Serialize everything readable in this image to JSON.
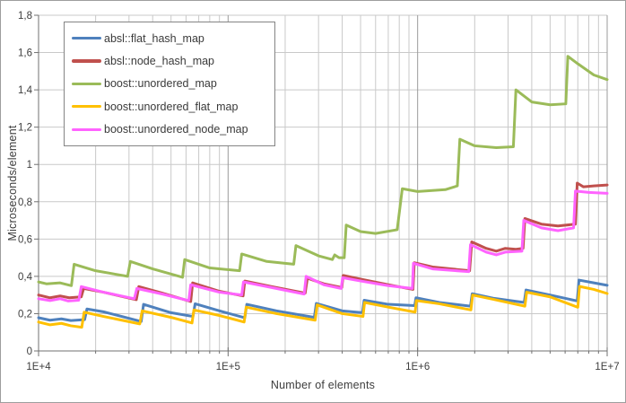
{
  "chart_data": {
    "type": "line",
    "xlabel": "Number of elements",
    "ylabel": "Microseconds/element",
    "x_scale": "log10",
    "x_range": [
      10000,
      10000000
    ],
    "y_range": [
      0,
      1.8
    ],
    "y_tick_step": 0.2,
    "x_tick_labels": [
      "1E+4",
      "1E+5",
      "1E+6",
      "1E+7"
    ],
    "y_tick_labels": [
      "0",
      "0,2",
      "0,4",
      "0,6",
      "0,8",
      "1",
      "1,2",
      "1,4",
      "1,6",
      "1,8"
    ],
    "grid": true,
    "legend_position": "inside-top-left",
    "series": [
      {
        "name": "absl::flat_hash_map",
        "color": "#4F81BD",
        "points": [
          [
            10000,
            0.178
          ],
          [
            11500,
            0.165
          ],
          [
            13200,
            0.172
          ],
          [
            14800,
            0.163
          ],
          [
            17500,
            0.168
          ],
          [
            18000,
            0.225
          ],
          [
            22000,
            0.21
          ],
          [
            34800,
            0.158
          ],
          [
            35800,
            0.25
          ],
          [
            50000,
            0.205
          ],
          [
            65200,
            0.185
          ],
          [
            67000,
            0.253
          ],
          [
            90000,
            0.215
          ],
          [
            122500,
            0.178
          ],
          [
            125500,
            0.25
          ],
          [
            180000,
            0.215
          ],
          [
            285000,
            0.18
          ],
          [
            292000,
            0.255
          ],
          [
            400000,
            0.215
          ],
          [
            512000,
            0.205
          ],
          [
            522000,
            0.272
          ],
          [
            700000,
            0.25
          ],
          [
            965000,
            0.243
          ],
          [
            980000,
            0.285
          ],
          [
            1300000,
            0.26
          ],
          [
            1900000,
            0.24
          ],
          [
            1940000,
            0.307
          ],
          [
            2500000,
            0.283
          ],
          [
            3650000,
            0.26
          ],
          [
            3730000,
            0.327
          ],
          [
            5000000,
            0.3
          ],
          [
            6950000,
            0.268
          ],
          [
            7100000,
            0.38
          ],
          [
            8500000,
            0.365
          ],
          [
            10000000,
            0.352
          ]
        ]
      },
      {
        "name": "absl::node_hash_map",
        "color": "#C0504D",
        "points": [
          [
            10000,
            0.3
          ],
          [
            11500,
            0.285
          ],
          [
            13000,
            0.295
          ],
          [
            14500,
            0.285
          ],
          [
            16800,
            0.29
          ],
          [
            17300,
            0.335
          ],
          [
            22000,
            0.315
          ],
          [
            32800,
            0.275
          ],
          [
            33800,
            0.345
          ],
          [
            45000,
            0.31
          ],
          [
            63500,
            0.265
          ],
          [
            65000,
            0.365
          ],
          [
            90000,
            0.32
          ],
          [
            120000,
            0.295
          ],
          [
            122500,
            0.375
          ],
          [
            170000,
            0.345
          ],
          [
            255000,
            0.31
          ],
          [
            262000,
            0.39
          ],
          [
            320000,
            0.36
          ],
          [
            398000,
            0.34
          ],
          [
            405000,
            0.405
          ],
          [
            500000,
            0.385
          ],
          [
            700000,
            0.355
          ],
          [
            945000,
            0.33
          ],
          [
            960000,
            0.473
          ],
          [
            1200000,
            0.45
          ],
          [
            1880000,
            0.43
          ],
          [
            1930000,
            0.585
          ],
          [
            2300000,
            0.55
          ],
          [
            2600000,
            0.535
          ],
          [
            2900000,
            0.55
          ],
          [
            3300000,
            0.545
          ],
          [
            3600000,
            0.55
          ],
          [
            3680000,
            0.71
          ],
          [
            4500000,
            0.68
          ],
          [
            5500000,
            0.67
          ],
          [
            6800000,
            0.68
          ],
          [
            6950000,
            0.9
          ],
          [
            7500000,
            0.88
          ],
          [
            8500000,
            0.885
          ],
          [
            10000000,
            0.89
          ]
        ]
      },
      {
        "name": "boost::unordered_map",
        "color": "#9BBB59",
        "points": [
          [
            10000,
            0.37
          ],
          [
            11000,
            0.36
          ],
          [
            13000,
            0.365
          ],
          [
            14900,
            0.35
          ],
          [
            15400,
            0.465
          ],
          [
            20000,
            0.43
          ],
          [
            29500,
            0.4
          ],
          [
            30500,
            0.48
          ],
          [
            40000,
            0.44
          ],
          [
            57500,
            0.395
          ],
          [
            59000,
            0.49
          ],
          [
            80000,
            0.445
          ],
          [
            115000,
            0.43
          ],
          [
            118000,
            0.52
          ],
          [
            160000,
            0.48
          ],
          [
            222000,
            0.465
          ],
          [
            228000,
            0.565
          ],
          [
            300000,
            0.51
          ],
          [
            355000,
            0.49
          ],
          [
            365000,
            0.515
          ],
          [
            385000,
            0.5
          ],
          [
            410000,
            0.5
          ],
          [
            420000,
            0.675
          ],
          [
            500000,
            0.64
          ],
          [
            600000,
            0.63
          ],
          [
            780000,
            0.65
          ],
          [
            830000,
            0.87
          ],
          [
            1000000,
            0.855
          ],
          [
            1400000,
            0.865
          ],
          [
            1620000,
            0.885
          ],
          [
            1670000,
            1.135
          ],
          [
            2000000,
            1.1
          ],
          [
            2600000,
            1.09
          ],
          [
            3200000,
            1.095
          ],
          [
            3300000,
            1.4
          ],
          [
            4000000,
            1.335
          ],
          [
            5000000,
            1.32
          ],
          [
            6050000,
            1.325
          ],
          [
            6200000,
            1.58
          ],
          [
            7000000,
            1.54
          ],
          [
            8500000,
            1.48
          ],
          [
            10000000,
            1.455
          ]
        ]
      },
      {
        "name": "boost::unordered_flat_map",
        "color": "#FFC000",
        "points": [
          [
            10000,
            0.155
          ],
          [
            11500,
            0.14
          ],
          [
            13200,
            0.148
          ],
          [
            14800,
            0.135
          ],
          [
            16900,
            0.127
          ],
          [
            17400,
            0.208
          ],
          [
            22000,
            0.185
          ],
          [
            34200,
            0.145
          ],
          [
            35200,
            0.215
          ],
          [
            50000,
            0.18
          ],
          [
            64500,
            0.15
          ],
          [
            66000,
            0.22
          ],
          [
            90000,
            0.19
          ],
          [
            121500,
            0.155
          ],
          [
            124500,
            0.235
          ],
          [
            180000,
            0.2
          ],
          [
            288000,
            0.165
          ],
          [
            295000,
            0.247
          ],
          [
            400000,
            0.2
          ],
          [
            515000,
            0.185
          ],
          [
            525000,
            0.26
          ],
          [
            700000,
            0.235
          ],
          [
            970000,
            0.208
          ],
          [
            985000,
            0.27
          ],
          [
            1300000,
            0.253
          ],
          [
            1910000,
            0.22
          ],
          [
            1950000,
            0.3
          ],
          [
            2500000,
            0.277
          ],
          [
            3680000,
            0.24
          ],
          [
            3760000,
            0.315
          ],
          [
            5000000,
            0.29
          ],
          [
            7000000,
            0.234
          ],
          [
            7150000,
            0.346
          ],
          [
            8500000,
            0.33
          ],
          [
            10000000,
            0.308
          ]
        ]
      },
      {
        "name": "boost::unordered_node_map",
        "color": "#FF63FF",
        "points": [
          [
            10000,
            0.28
          ],
          [
            11500,
            0.27
          ],
          [
            13000,
            0.28
          ],
          [
            14300,
            0.268
          ],
          [
            16300,
            0.272
          ],
          [
            16800,
            0.345
          ],
          [
            22000,
            0.315
          ],
          [
            32000,
            0.28
          ],
          [
            33000,
            0.335
          ],
          [
            45000,
            0.305
          ],
          [
            62000,
            0.27
          ],
          [
            63500,
            0.355
          ],
          [
            90000,
            0.315
          ],
          [
            118000,
            0.3
          ],
          [
            120500,
            0.37
          ],
          [
            170000,
            0.34
          ],
          [
            252000,
            0.305
          ],
          [
            258000,
            0.4
          ],
          [
            320000,
            0.355
          ],
          [
            395000,
            0.335
          ],
          [
            402000,
            0.393
          ],
          [
            500000,
            0.375
          ],
          [
            700000,
            0.35
          ],
          [
            938000,
            0.335
          ],
          [
            950000,
            0.47
          ],
          [
            1200000,
            0.44
          ],
          [
            1860000,
            0.425
          ],
          [
            1900000,
            0.57
          ],
          [
            2300000,
            0.53
          ],
          [
            2600000,
            0.515
          ],
          [
            2900000,
            0.53
          ],
          [
            3550000,
            0.535
          ],
          [
            3630000,
            0.7
          ],
          [
            4500000,
            0.66
          ],
          [
            5500000,
            0.645
          ],
          [
            6650000,
            0.66
          ],
          [
            6800000,
            0.857
          ],
          [
            8000000,
            0.85
          ],
          [
            10000000,
            0.845
          ]
        ]
      }
    ]
  },
  "colors": {
    "background": "#FFFFFF",
    "grid_minor": "#C9C9C9",
    "grid_major": "#9B9B9B",
    "axis": "#707070",
    "tick": "#707070",
    "text": "#3D3D3D",
    "legend_border": "#848484",
    "frame_border": "#9E9E9E"
  }
}
